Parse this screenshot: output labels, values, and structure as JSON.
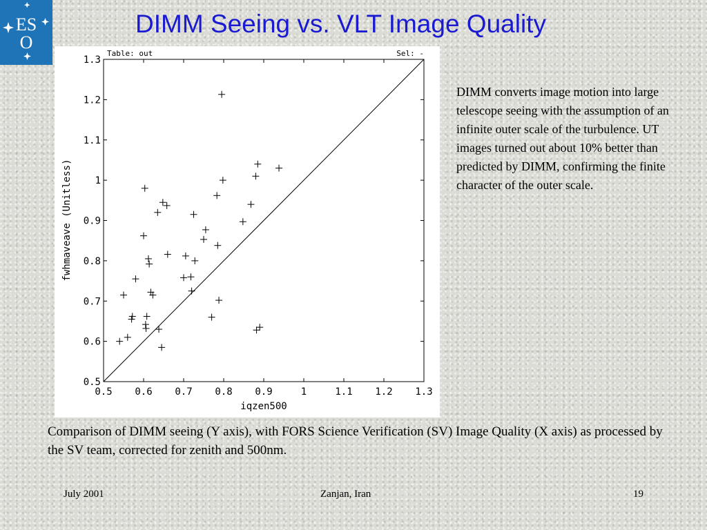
{
  "slide": {
    "title": "DIMM Seeing vs. VLT Image Quality",
    "logo_text": "ESO",
    "description": "DIMM converts image motion into large telescope seeing with the assumption of an infinite outer scale of the turbulence. UT images turned out about 10% better than predicted by DIMM, confirming the finite character of the outer scale.",
    "caption": "Comparison of DIMM seeing (Y axis), with FORS Science Verification (SV) Image Quality (X axis) as processed by the SV team, corrected for zenith and 500nm.",
    "footer": {
      "date": "July 2001",
      "place": "Zanjan, Iran",
      "page": "19"
    },
    "colors": {
      "title": "#1a1ad0",
      "logo_bg": "#1f73b7"
    }
  },
  "chart_data": {
    "type": "scatter",
    "header_left": "Table: out",
    "header_right": "Sel: -",
    "xlabel": "iqzen500",
    "ylabel": "fwhmaveave (Unitless)",
    "xlim": [
      0.5,
      1.3
    ],
    "ylim": [
      0.5,
      1.3
    ],
    "xticks": [
      "0.5",
      "0.6",
      "0.7",
      "0.8",
      "0.9",
      "1",
      "1.1",
      "1.2",
      "1.3"
    ],
    "yticks": [
      "0.5",
      "0.6",
      "0.7",
      "0.8",
      "0.9",
      "1",
      "1.1",
      "1.2",
      "1.3"
    ],
    "grid": false,
    "reference_line": [
      [
        0.5,
        0.5
      ],
      [
        1.3,
        1.3
      ]
    ],
    "marker": "plus",
    "points": [
      [
        0.54,
        0.6
      ],
      [
        0.55,
        0.715
      ],
      [
        0.56,
        0.61
      ],
      [
        0.57,
        0.655
      ],
      [
        0.572,
        0.662
      ],
      [
        0.58,
        0.755
      ],
      [
        0.6,
        0.862
      ],
      [
        0.603,
        0.98
      ],
      [
        0.605,
        0.642
      ],
      [
        0.606,
        0.632
      ],
      [
        0.608,
        0.662
      ],
      [
        0.612,
        0.805
      ],
      [
        0.614,
        0.792
      ],
      [
        0.618,
        0.722
      ],
      [
        0.623,
        0.715
      ],
      [
        0.635,
        0.92
      ],
      [
        0.638,
        0.63
      ],
      [
        0.645,
        0.585
      ],
      [
        0.648,
        0.945
      ],
      [
        0.658,
        0.937
      ],
      [
        0.66,
        0.816
      ],
      [
        0.7,
        0.758
      ],
      [
        0.705,
        0.812
      ],
      [
        0.718,
        0.76
      ],
      [
        0.72,
        0.725
      ],
      [
        0.725,
        0.915
      ],
      [
        0.728,
        0.8
      ],
      [
        0.75,
        0.853
      ],
      [
        0.755,
        0.877
      ],
      [
        0.77,
        0.66
      ],
      [
        0.783,
        0.962
      ],
      [
        0.785,
        0.838
      ],
      [
        0.788,
        0.702
      ],
      [
        0.795,
        1.213
      ],
      [
        0.798,
        1.0
      ],
      [
        0.848,
        0.897
      ],
      [
        0.868,
        0.94
      ],
      [
        0.88,
        1.01
      ],
      [
        0.882,
        0.628
      ],
      [
        0.885,
        1.04
      ],
      [
        0.89,
        0.635
      ],
      [
        0.938,
        1.03
      ]
    ]
  }
}
